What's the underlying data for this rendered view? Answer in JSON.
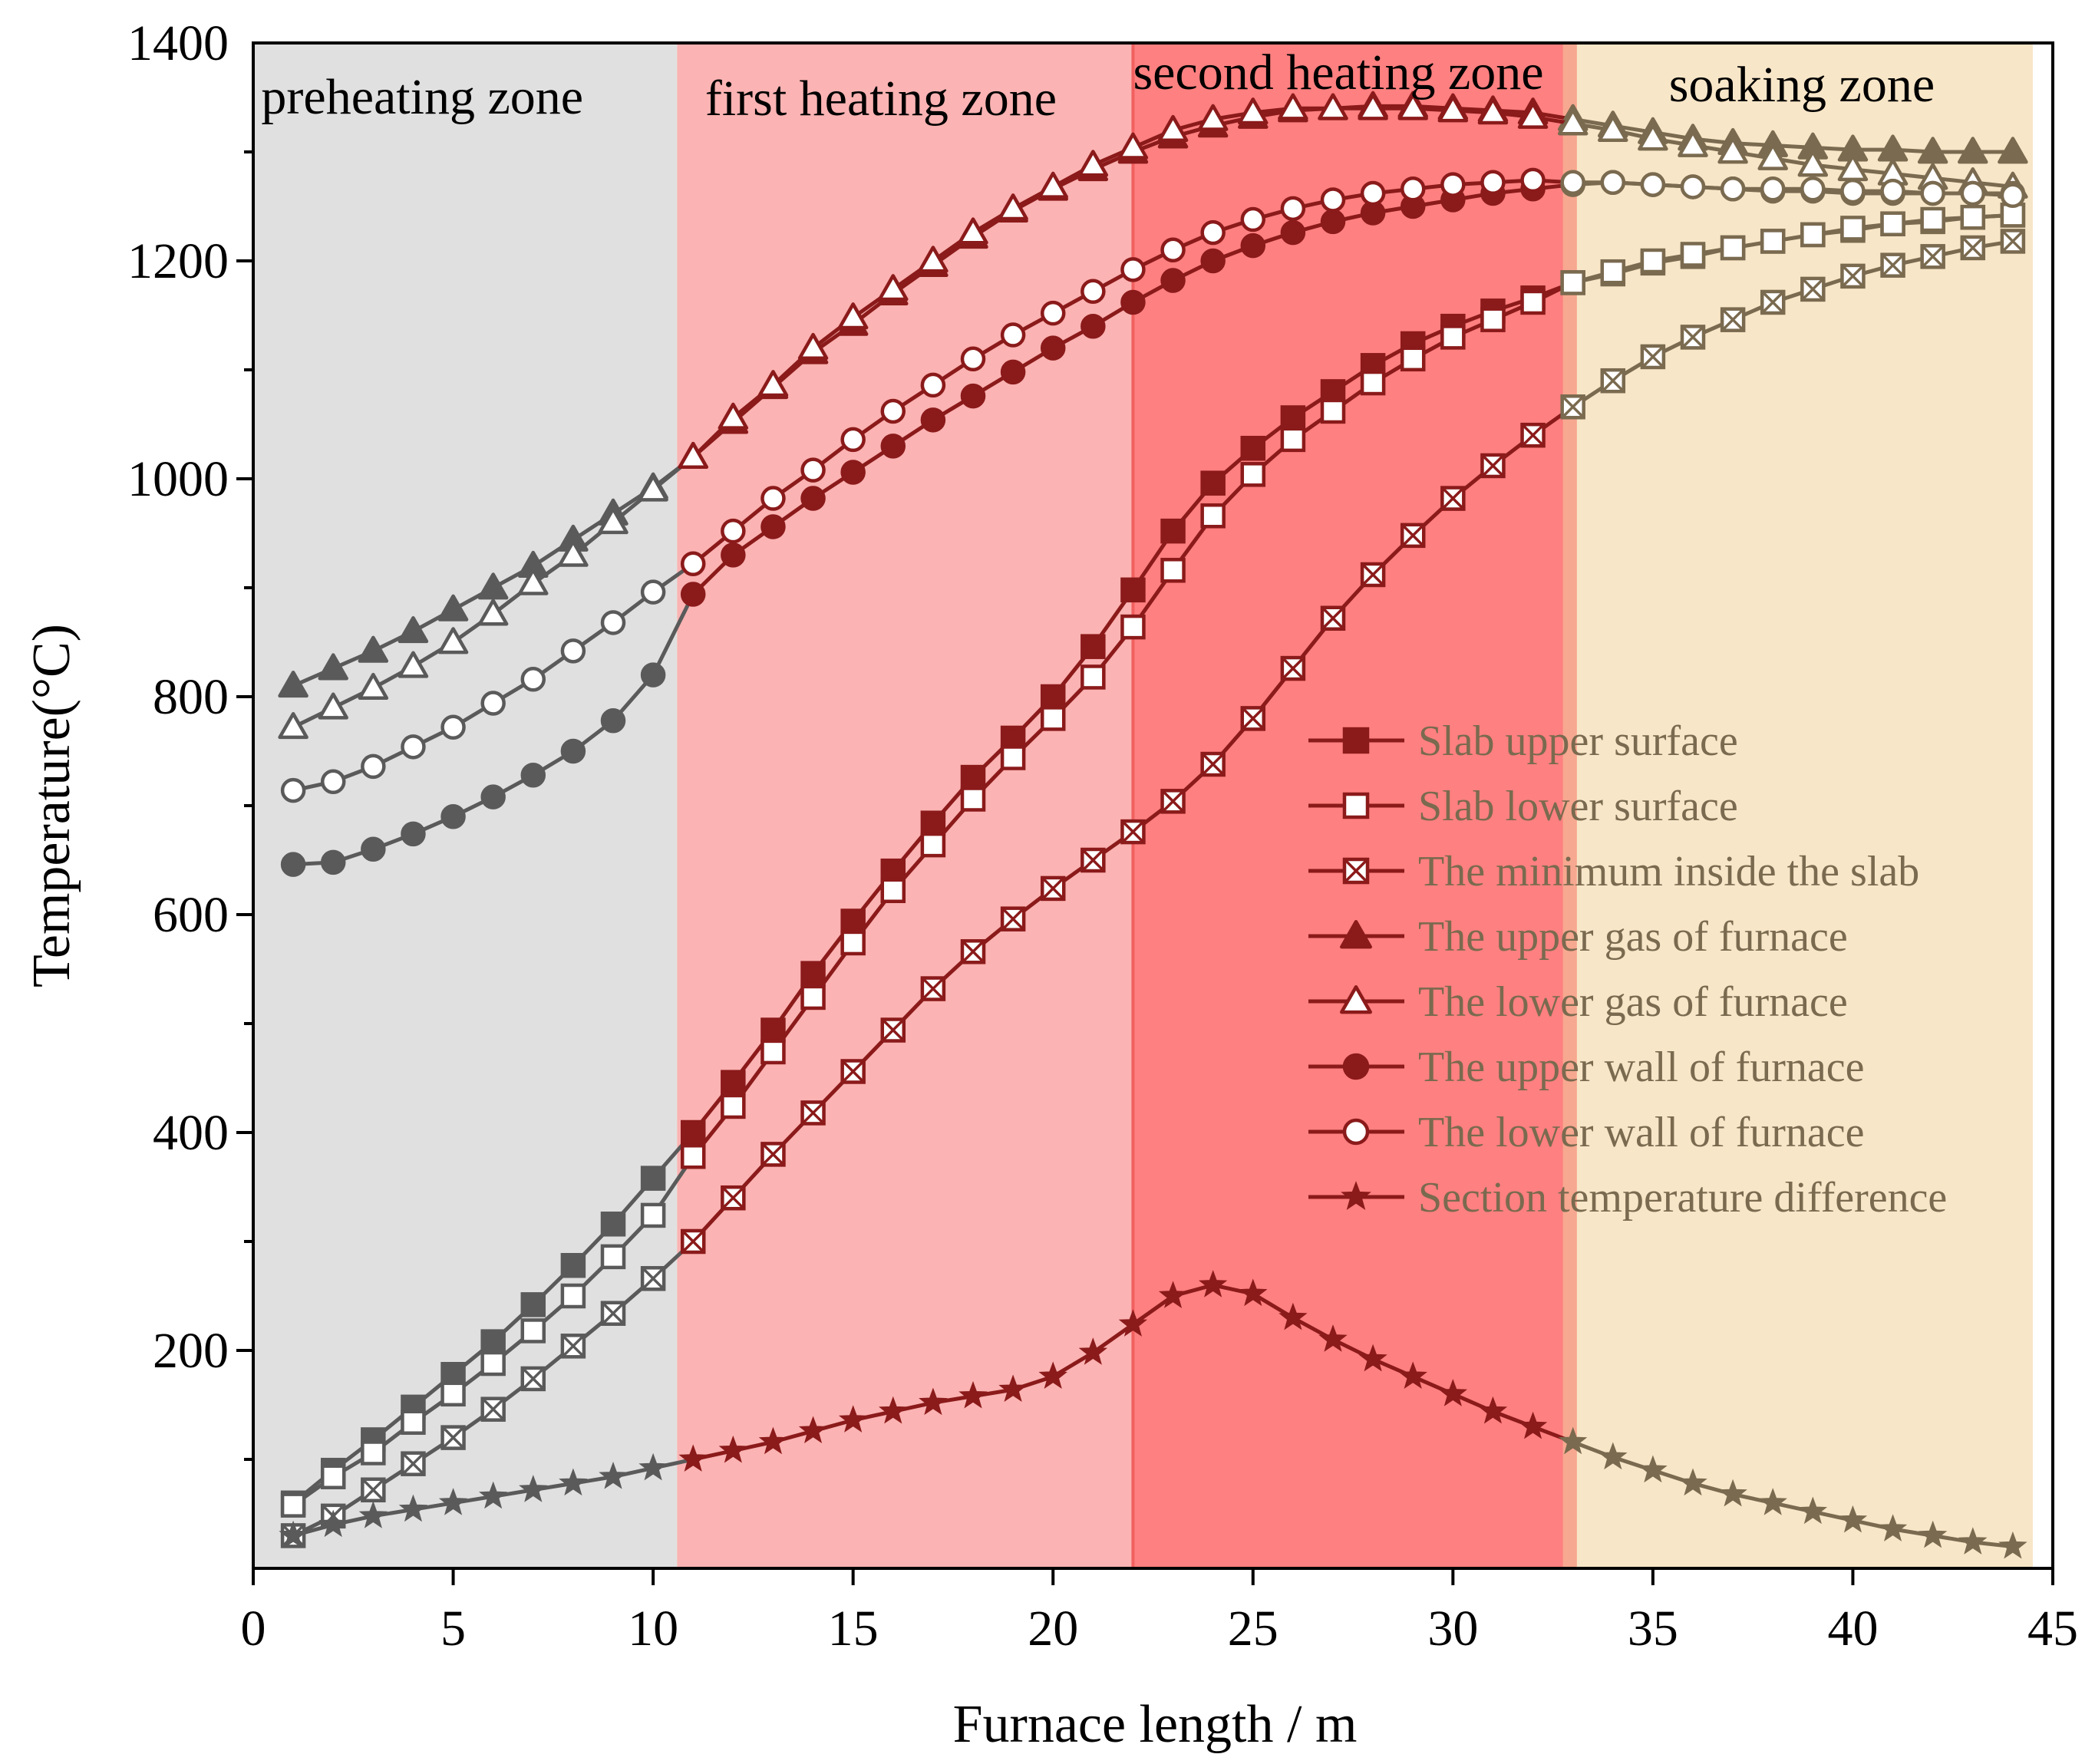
{
  "chart_data": {
    "type": "line",
    "title": "",
    "xlabel": "Furnace length / m",
    "ylabel": "Temperature(°C)",
    "xlim": [
      0,
      45
    ],
    "ylim": [
      0,
      1400
    ],
    "xticks": [
      0,
      5,
      10,
      15,
      20,
      25,
      30,
      35,
      40,
      45
    ],
    "yticks": [
      200,
      400,
      600,
      800,
      1000,
      1200,
      1400
    ],
    "grid": false,
    "legend_position": "center-right",
    "zones": [
      {
        "label": "preheating zone",
        "x_start": 0,
        "x_end": 10.6,
        "color": "#e0e0e0"
      },
      {
        "label": "first heating zone",
        "x_start": 10.6,
        "x_end": 22,
        "color": "#fbb3b3"
      },
      {
        "label": "second heating zone",
        "x_start": 22,
        "x_end": 33,
        "color": "#ff8080"
      },
      {
        "label": "soaking zone",
        "x_start": 33,
        "x_end": 44.5,
        "color": "#f8e6c8"
      }
    ],
    "x": [
      1,
      2,
      3,
      4,
      5,
      6,
      7,
      8,
      9,
      10,
      11,
      12,
      13,
      14,
      15,
      16,
      17,
      18,
      19,
      20,
      21,
      22,
      23,
      24,
      25,
      26,
      27,
      28,
      29,
      30,
      31,
      32,
      33,
      34,
      35,
      36,
      37,
      38,
      39,
      40,
      41,
      42,
      43,
      44
    ],
    "series": [
      {
        "name": "Slab upper surface",
        "marker": "square-filled",
        "values": [
          60,
          90,
          118,
          148,
          178,
          208,
          242,
          278,
          316,
          358,
          400,
          446,
          494,
          546,
          594,
          640,
          684,
          726,
          762,
          800,
          846,
          898,
          952,
          996,
          1028,
          1056,
          1080,
          1104,
          1124,
          1140,
          1154,
          1166,
          1180,
          1188,
          1198,
          1204,
          1212,
          1218,
          1224,
          1228,
          1234,
          1236,
          1240,
          1242
        ]
      },
      {
        "name": "Slab lower surface",
        "marker": "square-open",
        "values": [
          58,
          84,
          106,
          134,
          160,
          188,
          218,
          250,
          286,
          324,
          378,
          424,
          474,
          524,
          574,
          622,
          664,
          706,
          744,
          780,
          818,
          864,
          916,
          966,
          1004,
          1036,
          1062,
          1088,
          1110,
          1130,
          1146,
          1162,
          1180,
          1190,
          1200,
          1206,
          1212,
          1218,
          1224,
          1230,
          1234,
          1238,
          1240,
          1242
        ]
      },
      {
        "name": "The minimum inside the slab",
        "marker": "square-x",
        "values": [
          30,
          48,
          72,
          96,
          120,
          146,
          174,
          204,
          234,
          266,
          300,
          340,
          380,
          418,
          456,
          494,
          532,
          566,
          596,
          624,
          650,
          676,
          704,
          738,
          780,
          826,
          872,
          912,
          948,
          982,
          1012,
          1040,
          1066,
          1090,
          1112,
          1130,
          1146,
          1162,
          1174,
          1186,
          1196,
          1204,
          1212,
          1218
        ]
      },
      {
        "name": "The upper  gas of furnace",
        "marker": "triangle-filled",
        "values": [
          810,
          826,
          842,
          860,
          880,
          900,
          920,
          944,
          968,
          992,
          1020,
          1052,
          1084,
          1116,
          1142,
          1170,
          1196,
          1222,
          1246,
          1266,
          1284,
          1300,
          1314,
          1324,
          1332,
          1338,
          1340,
          1342,
          1342,
          1340,
          1338,
          1336,
          1330,
          1324,
          1318,
          1312,
          1308,
          1306,
          1304,
          1302,
          1302,
          1300,
          1300,
          1300
        ]
      },
      {
        "name": "The lower  gas of furnace",
        "marker": "triangle-open",
        "values": [
          772,
          790,
          808,
          828,
          850,
          876,
          904,
          930,
          960,
          990,
          1020,
          1056,
          1086,
          1120,
          1148,
          1174,
          1200,
          1226,
          1248,
          1268,
          1288,
          1304,
          1320,
          1330,
          1336,
          1340,
          1340,
          1340,
          1340,
          1338,
          1336,
          1332,
          1326,
          1320,
          1312,
          1306,
          1300,
          1294,
          1288,
          1284,
          1280,
          1276,
          1272,
          1268
        ]
      },
      {
        "name": "The upper wall of furnace",
        "marker": "circle-filled",
        "values": [
          646,
          648,
          660,
          674,
          690,
          708,
          728,
          750,
          778,
          820,
          894,
          930,
          956,
          982,
          1006,
          1030,
          1054,
          1076,
          1098,
          1120,
          1140,
          1162,
          1182,
          1200,
          1214,
          1226,
          1236,
          1244,
          1250,
          1256,
          1262,
          1266,
          1270,
          1272,
          1270,
          1268,
          1266,
          1264,
          1264,
          1262,
          1262,
          1262,
          1262,
          1262
        ]
      },
      {
        "name": "The lower wall of furnace",
        "marker": "circle-open",
        "values": [
          714,
          722,
          736,
          754,
          772,
          794,
          816,
          842,
          868,
          896,
          922,
          952,
          982,
          1008,
          1036,
          1062,
          1086,
          1110,
          1132,
          1152,
          1172,
          1192,
          1210,
          1226,
          1238,
          1248,
          1256,
          1262,
          1266,
          1270,
          1272,
          1274,
          1272,
          1272,
          1270,
          1268,
          1266,
          1266,
          1266,
          1264,
          1264,
          1262,
          1262,
          1260
        ]
      },
      {
        "name": "Section temperature difference",
        "marker": "star",
        "values": [
          30,
          40,
          48,
          54,
          60,
          66,
          72,
          78,
          84,
          92,
          100,
          108,
          116,
          126,
          136,
          144,
          152,
          158,
          164,
          176,
          198,
          224,
          250,
          260,
          252,
          230,
          210,
          192,
          176,
          160,
          144,
          130,
          116,
          102,
          90,
          78,
          68,
          60,
          52,
          44,
          36,
          30,
          24,
          20
        ]
      }
    ]
  }
}
